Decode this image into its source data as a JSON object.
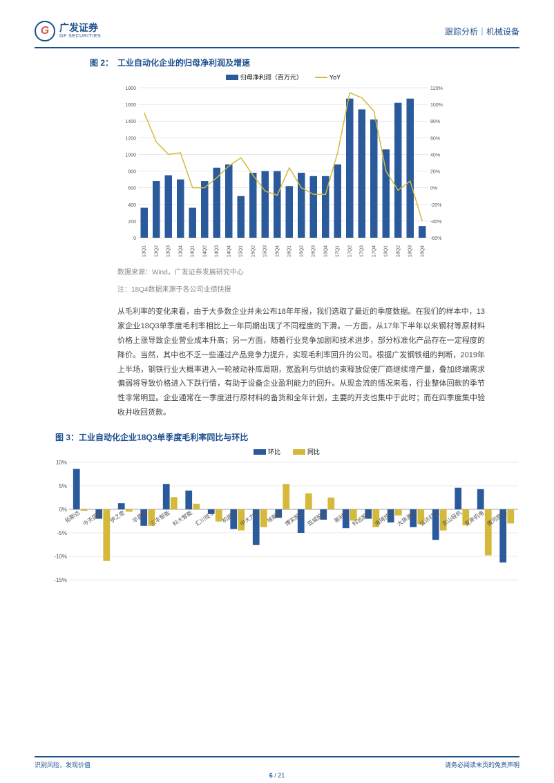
{
  "header": {
    "logo_cn": "广发证券",
    "logo_en": "GF SECURITIES",
    "logo_g": "G",
    "right": "跟踪分析｜机械设备"
  },
  "fig2": {
    "prefix": "图 2：",
    "title": "工业自动化企业的归母净利润及增速",
    "legend_bar": "归母净利润（百万元）",
    "legend_line": "YoY",
    "bar_color": "#2a5a9c",
    "line_color": "#d4b93a",
    "grid_color": "#d0d0d0",
    "yleft_ticks": [
      "0",
      "200",
      "400",
      "600",
      "800",
      "1000",
      "1200",
      "1400",
      "1600",
      "1800"
    ],
    "yright_ticks": [
      "-60%",
      "-40%",
      "-20%",
      "0%",
      "20%",
      "40%",
      "60%",
      "80%",
      "100%",
      "120%"
    ],
    "categories": [
      "13Q1",
      "13Q2",
      "13Q3",
      "13Q4",
      "14Q1",
      "14Q2",
      "14Q3",
      "14Q4",
      "15Q1",
      "15Q2",
      "15Q3",
      "15Q4",
      "16Q1",
      "16Q2",
      "16Q3",
      "16Q4",
      "17Q1",
      "17Q2",
      "17Q3",
      "17Q4",
      "18Q1",
      "18Q2",
      "18Q3",
      "18Q4"
    ],
    "bars": [
      360,
      680,
      750,
      700,
      360,
      680,
      840,
      880,
      500,
      780,
      800,
      800,
      620,
      780,
      740,
      740,
      880,
      1670,
      1540,
      1420,
      1060,
      1620,
      1670,
      140
    ],
    "bar_max": 1800,
    "line": [
      90,
      55,
      40,
      42,
      0,
      0,
      12,
      26,
      36,
      15,
      -4,
      -9,
      24,
      0,
      -8,
      -8,
      42,
      114,
      108,
      92,
      20,
      -3,
      8,
      -40
    ],
    "line_min": -60,
    "line_max": 120
  },
  "source": "数据来源：Wind，广发证券发展研究中心",
  "note": "注：18Q4数据来源于各公司业绩快报",
  "body": "从毛利率的变化来看，由于大多数企业并未公布18年年报，我们选取了最近的季度数据。在我们的样本中，13家企业18Q3单季度毛利率相比上一年同期出现了不同程度的下滑。一方面，从17年下半年以来钢材等原材料价格上涨导致企业营业成本升高；另一方面，随着行业竞争加剧和技术进步，部分标准化产品存在一定程度的降价。当然，其中也不乏一些通过产品竞争力提升，实现毛利率回升的公司。根据广发钢铁组的判断，2019年上半场，钢铁行业大概率进入一轮被动补库周期，宽盈利与供给约束释放促使厂商继续增产量，叠加终端需求偏弱将导致价格进入下跌行情，有助于设备企业盈利能力的回升。从现金流的情况来看，行业整体回款的季节性非常明显。企业通常在一季度进行原材料的备货和全年计划，主要的开支也集中于此时；而在四季度集中验收并收回货款。",
  "fig3": {
    "prefix": "图 3：",
    "title": "工业自动化企业18Q3单季度毛利率同比与环比",
    "legend_a": "环比",
    "legend_b": "同比",
    "color_a": "#2a5a9c",
    "color_b": "#d4b93a",
    "grid_color": "#d0d0d0",
    "y_ticks": [
      "-15%",
      "-10%",
      "-5%",
      "0%",
      "5%",
      "10%"
    ],
    "y_min": -15,
    "y_max": 10,
    "categories": [
      "拓斯达",
      "今天国际",
      "伊之密",
      "华昌达",
      "三丰智能",
      "科大智能",
      "汇川技术",
      "机器人",
      "中大力德",
      "埃斯顿",
      "博实股份",
      "亚威股份",
      "新时达",
      "科远股份",
      "海得控制",
      "大族激光",
      "弘讯科技",
      "京山轻机",
      "克来机电",
      "黄河旋风"
    ],
    "a_vals": [
      8.6,
      -2.0,
      1.3,
      -3.5,
      5.4,
      4.0,
      -1.0,
      -4.2,
      -7.6,
      -1.8,
      -5.0,
      -2.2,
      -4.0,
      -2.0,
      -2.8,
      -3.8,
      -6.5,
      4.6,
      4.3,
      -11.3
    ],
    "b_vals": [
      -0.3,
      -11.0,
      -0.5,
      -3.5,
      2.6,
      1.2,
      -2.6,
      -4.5,
      -3.8,
      5.4,
      3.4,
      2.5,
      -2.4,
      -3.8,
      -1.3,
      -3.2,
      -4.5,
      -3.4,
      -9.8,
      -3.0
    ]
  },
  "footer": {
    "left": "识别风险，发现价值",
    "right": "请务必阅读末页的免责声明",
    "page_cur": "6",
    "page_sep": " / ",
    "page_total": "21"
  }
}
